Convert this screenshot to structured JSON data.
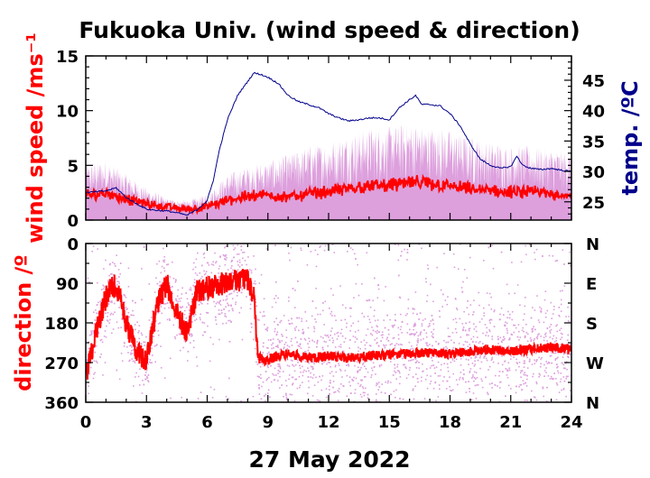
{
  "chart_data": [
    {
      "type": "line",
      "title": "Fukuoka Univ. (wind speed & direction)",
      "ylabel": "wind speed /ms⁻¹",
      "ylabel_right": "temp. /ºC",
      "xlim": [
        0,
        24
      ],
      "ylim": [
        0,
        15
      ],
      "ylim_right": [
        22,
        49
      ],
      "x_ticks": [
        0,
        3,
        6,
        9,
        12,
        15,
        18,
        21,
        24
      ],
      "y_ticks": [
        0,
        5,
        10,
        15
      ],
      "y_ticks_right": [
        25,
        30,
        35,
        40,
        45
      ],
      "grid": false,
      "colors": {
        "gust": "#dda0dd",
        "mean": "#ff0000",
        "temp": "#00008b"
      },
      "series": [
        {
          "x": [
            0,
            1,
            2,
            3,
            4,
            5,
            6,
            7,
            8,
            9,
            10,
            11,
            12,
            13,
            14,
            15,
            16,
            17,
            18,
            19,
            20,
            21,
            22,
            23,
            24
          ],
          "values": [
            2.2,
            2.5,
            1.9,
            1.5,
            1.2,
            1.0,
            1.2,
            1.8,
            2.2,
            2.3,
            2.1,
            2.4,
            2.6,
            2.9,
            3.1,
            3.2,
            3.4,
            3.3,
            3.1,
            2.8,
            2.7,
            2.5,
            2.6,
            2.4,
            2.3
          ]
        },
        {
          "x": [
            0,
            1,
            2,
            3,
            4,
            5,
            6,
            7,
            8,
            9,
            10,
            11,
            12,
            13,
            14,
            15,
            16,
            17,
            18,
            19,
            20,
            21,
            22,
            23,
            24
          ],
          "values": [
            5.0,
            5.5,
            4.2,
            3.0,
            2.0,
            1.8,
            2.4,
            4.2,
            5.0,
            5.4,
            6.0,
            6.8,
            7.2,
            7.8,
            8.4,
            8.6,
            8.8,
            8.6,
            8.2,
            7.6,
            7.2,
            6.8,
            6.8,
            6.5,
            6.2
          ]
        },
        {
          "x": [
            0,
            1,
            1.5,
            2,
            2.5,
            3,
            3.5,
            4,
            4.5,
            5,
            5.5,
            6,
            6.3,
            6.6,
            7,
            7.5,
            8,
            8.3,
            8.6,
            9,
            9.5,
            10,
            10.5,
            11,
            11.5,
            12,
            12.5,
            13,
            13.5,
            14,
            14.5,
            15,
            15.5,
            16,
            16.3,
            16.6,
            17,
            17.5,
            18,
            18.5,
            19,
            19.5,
            20,
            20.5,
            21,
            21.3,
            21.6,
            22,
            22.5,
            23,
            23.5,
            24
          ],
          "values": [
            26.5,
            26.8,
            27.3,
            25.7,
            24.7,
            23.8,
            23.6,
            23.5,
            23.2,
            22.8,
            23.7,
            25.2,
            28.5,
            33.5,
            38.5,
            42.5,
            44.8,
            46.2,
            46.0,
            45.5,
            44.5,
            42.5,
            41.5,
            41.0,
            40.5,
            39.5,
            38.8,
            38.3,
            38.5,
            38.8,
            38.8,
            38.5,
            40.5,
            41.8,
            42.5,
            41.0,
            41.0,
            40.8,
            39.5,
            37.5,
            34.5,
            32.0,
            31.0,
            30.5,
            30.8,
            32.5,
            31.0,
            30.5,
            30.3,
            30.5,
            30.2,
            30.0
          ]
        }
      ]
    },
    {
      "type": "scatter",
      "ylabel": "direction /º",
      "xlabel": "27 May 2022",
      "xlim": [
        0,
        24
      ],
      "ylim": [
        360,
        0
      ],
      "x_ticks": [
        0,
        3,
        6,
        9,
        12,
        15,
        18,
        21,
        24
      ],
      "y_ticks": [
        0,
        90,
        180,
        270,
        360
      ],
      "y_ticks_right": [
        "N",
        "E",
        "S",
        "W",
        "N"
      ],
      "grid": false,
      "colors": {
        "scatter": "#dda0dd",
        "mean": "#ff0000"
      },
      "series": [
        {
          "x": [
            0,
            0.5,
            1,
            1.5,
            2,
            2.5,
            3,
            3.5,
            4,
            4.5,
            5,
            5.5,
            6,
            6.5,
            7,
            7.5,
            8,
            8.3,
            8.5,
            9,
            9.5,
            10,
            11,
            12,
            13,
            14,
            15,
            16,
            17,
            18,
            19,
            20,
            21,
            22,
            23,
            24
          ],
          "values": [
            300,
            200,
            120,
            90,
            180,
            240,
            270,
            140,
            90,
            160,
            200,
            110,
            100,
            95,
            90,
            85,
            80,
            120,
            260,
            265,
            255,
            250,
            260,
            255,
            260,
            255,
            252,
            250,
            248,
            250,
            245,
            240,
            245,
            240,
            235,
            240
          ]
        }
      ]
    }
  ]
}
